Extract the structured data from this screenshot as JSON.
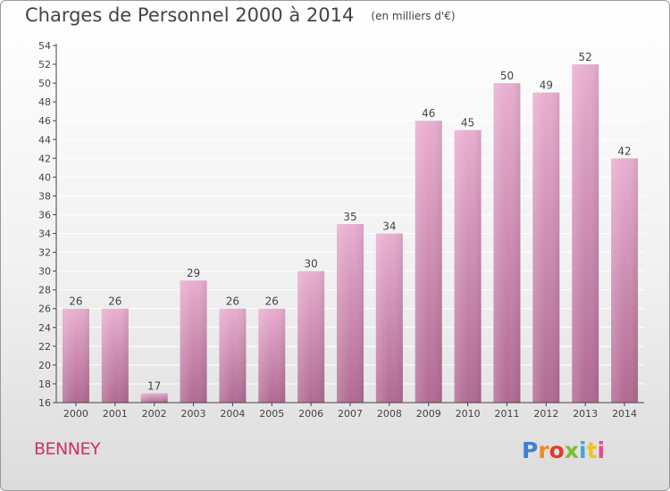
{
  "header": {
    "title": "Charges de Personnel 2000 à 2014",
    "unit": "(en milliers d'€)"
  },
  "footer": {
    "city": "BENNEY",
    "logo_text": "Proxiti",
    "logo_colors": [
      "#3f7fd6",
      "#f08a1c",
      "#e63a2e",
      "#7cbf2f",
      "#3fa9d6",
      "#f3c21c",
      "#e64b8c"
    ]
  },
  "colors": {
    "bar_top": "#e9aed0",
    "bar_bottom": "#b06a92",
    "grid": "#ffffff",
    "axis": "#444444",
    "city": "#cc3366"
  },
  "chart_data": {
    "type": "bar",
    "categories": [
      "2000",
      "2001",
      "2002",
      "2003",
      "2004",
      "2005",
      "2006",
      "2007",
      "2008",
      "2009",
      "2010",
      "2011",
      "2012",
      "2013",
      "2014"
    ],
    "values": [
      26,
      26,
      17,
      29,
      26,
      26,
      30,
      35,
      34,
      46,
      45,
      50,
      49,
      52,
      42
    ],
    "ylim": [
      16,
      54
    ],
    "yticks": [
      16,
      18,
      20,
      22,
      24,
      26,
      28,
      30,
      32,
      34,
      36,
      38,
      40,
      42,
      44,
      46,
      48,
      50,
      52,
      54
    ],
    "grid": true
  }
}
